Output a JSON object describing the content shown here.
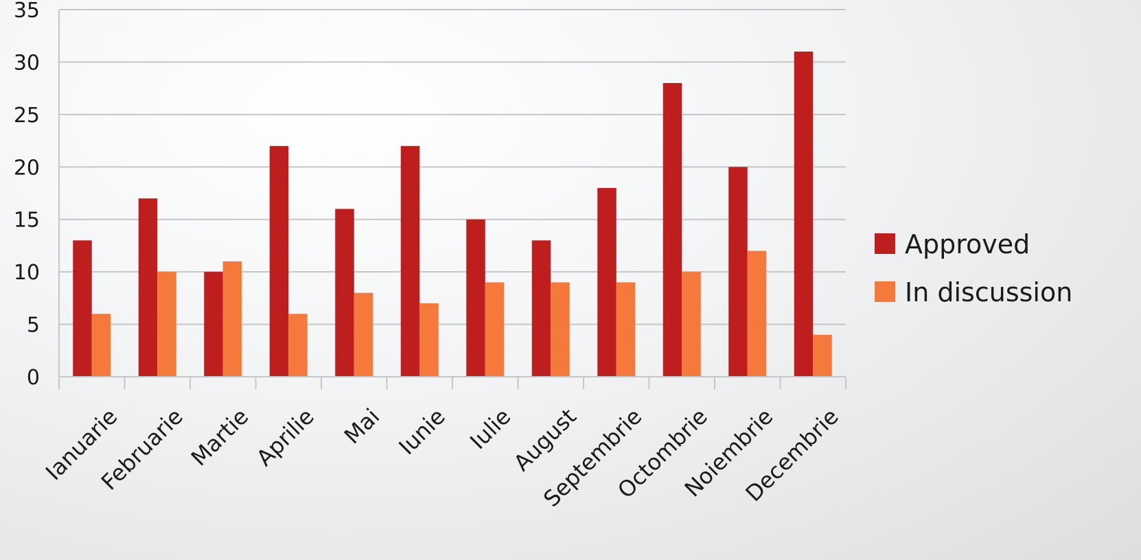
{
  "chart_data": {
    "type": "bar",
    "title": "",
    "xlabel": "",
    "ylabel": "",
    "ylim": [
      0,
      35
    ],
    "yticks": [
      0,
      5,
      10,
      15,
      20,
      25,
      30,
      35
    ],
    "grid": true,
    "legend_position": "right",
    "categories": [
      "Ianuarie",
      "Februarie",
      "Martie",
      "Aprilie",
      "Mai",
      "Iunie",
      "Iulie",
      "August",
      "Septembrie",
      "Octombrie",
      "Noiembrie",
      "Decembrie"
    ],
    "series": [
      {
        "name": "Approved",
        "color": "#be1e1e",
        "values": [
          13,
          17,
          10,
          22,
          16,
          22,
          15,
          13,
          18,
          28,
          20,
          31
        ]
      },
      {
        "name": "In discussion",
        "color": "#f5793a",
        "values": [
          6,
          10,
          11,
          6,
          8,
          7,
          9,
          9,
          9,
          10,
          12,
          4
        ]
      }
    ]
  }
}
